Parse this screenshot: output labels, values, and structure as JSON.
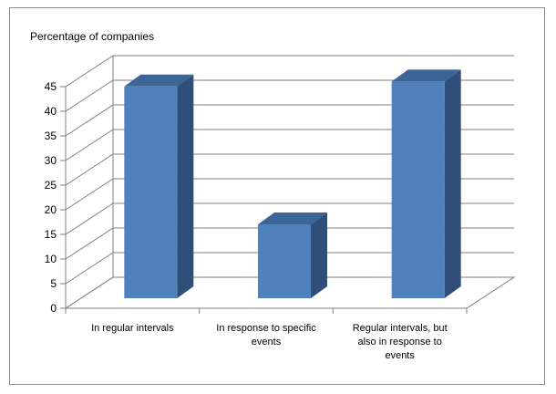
{
  "chart_data": {
    "type": "bar",
    "title": "Percentage of companies",
    "xlabel": "",
    "ylabel": "",
    "categories": [
      [
        "In regular intervals"
      ],
      [
        "In response to specific",
        "events"
      ],
      [
        "Regular intervals, but",
        "also in response to",
        "events"
      ]
    ],
    "values": [
      43,
      15,
      44
    ],
    "ylim": [
      0,
      45
    ],
    "yticks": [
      0,
      5,
      10,
      15,
      20,
      25,
      30,
      35,
      40,
      45
    ],
    "grid": true,
    "three_d": true,
    "colors": {
      "bar_front": "#4F81BD",
      "bar_top": "#3C6496",
      "bar_side": "#2F4F7A",
      "gridline": "#7f7f7f",
      "axis": "#7f7f7f"
    }
  }
}
